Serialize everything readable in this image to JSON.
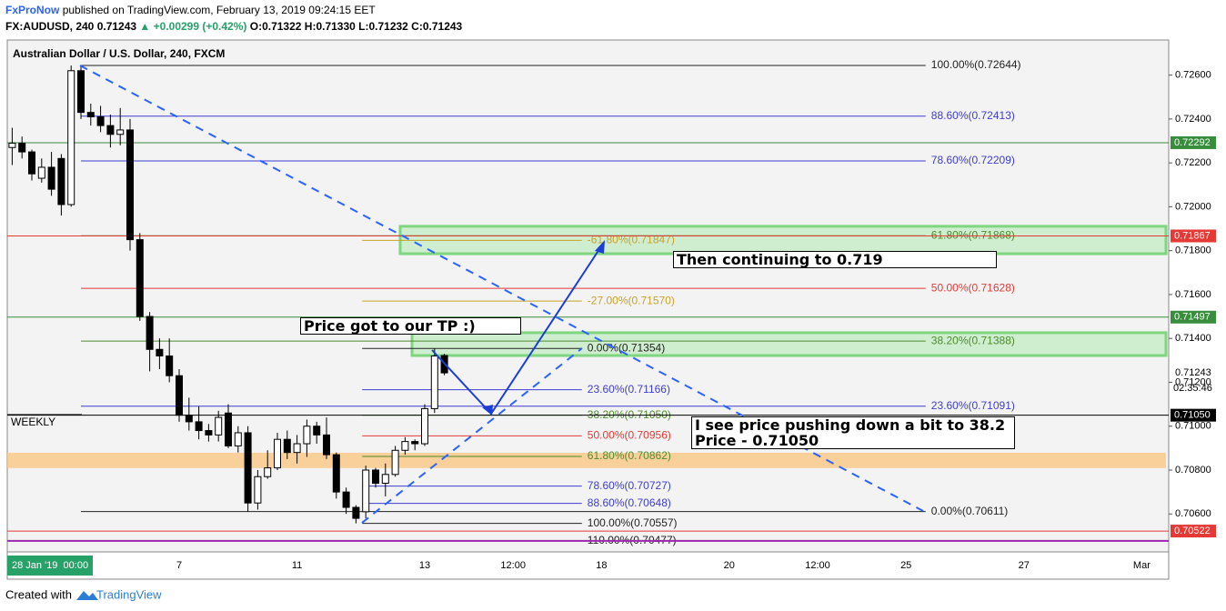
{
  "header": {
    "author": "FxProNow",
    "published": "published on TradingView.com, February 13, 2019 09:24:15 EET",
    "symbol": "FX:AUDUSD, 240 0.71243",
    "change": "▲ +0.00299 (+0.42%)",
    "ohlc": "O:0.71322 H:0.71330 L:0.71232 C:0.71243"
  },
  "footer": {
    "created": "Created with",
    "brand": "TradingView"
  },
  "annotations": {
    "tp": "Price got to our TP :)",
    "continue": "Then continuing to 0.719",
    "pullback": "I see price pushing down a bit to 38.2\nPrice - 0.71050",
    "weekly": "WEEKLY"
  },
  "chart_data": {
    "type": "candlestick",
    "title": "Australian Dollar / U.S. Dollar, 240, FXCM",
    "time_badge": "28 Jan '19  00:00",
    "categories": [
      null,
      null,
      null,
      null,
      null,
      null,
      null,
      null,
      null,
      null,
      null,
      null,
      null,
      null,
      null,
      null,
      null,
      "7",
      null,
      null,
      null,
      null,
      null,
      null,
      null,
      null,
      null,
      null,
      null,
      "11",
      null,
      null,
      null,
      null,
      null,
      null,
      null,
      null,
      null,
      null,
      null,
      null,
      "13",
      null,
      null,
      null,
      null,
      null,
      null,
      null,
      null,
      "12:00",
      null,
      null,
      null,
      null,
      null,
      null,
      null,
      null,
      "18",
      null,
      null,
      null,
      null,
      null,
      null,
      null,
      null,
      null,
      null,
      null,
      null,
      "20",
      null,
      null,
      null,
      null,
      null,
      null,
      null,
      null,
      "12:00",
      null,
      null,
      null,
      null,
      null,
      null,
      null,
      null,
      "25",
      null,
      null,
      null,
      null,
      null,
      null,
      null,
      null,
      null,
      null,
      null,
      "27",
      null,
      null,
      null,
      null,
      null,
      null,
      null,
      null,
      null,
      null,
      null,
      "Mar"
    ],
    "open": [
      0.7227,
      0.7229,
      0.7225,
      0.7213,
      0.7218,
      0.7222,
      0.7201,
      0.7262,
      0.7243,
      0.7241,
      0.7237,
      0.7233,
      0.7235,
      0.7185,
      0.715,
      0.7135,
      0.7132,
      0.7123,
      0.7105,
      0.7102,
      0.7098,
      0.7096,
      0.7106,
      0.7091,
      0.7097,
      0.7065,
      0.7077,
      0.7081,
      0.7094,
      0.7088,
      0.7092,
      0.71,
      0.7096,
      0.7087,
      0.707,
      0.7063,
      0.7061,
      0.708,
      0.7074,
      0.7078,
      0.7089,
      0.7093,
      0.7092,
      0.7108,
      0.71322,
      null,
      null,
      null,
      null,
      null,
      null,
      null,
      null,
      null,
      null,
      null,
      null,
      null,
      null,
      null,
      null,
      null,
      null,
      null,
      null,
      null,
      null,
      null,
      null,
      null,
      null,
      null,
      null,
      null,
      null,
      null,
      null,
      null,
      null,
      null,
      null,
      null,
      null,
      null,
      null,
      null,
      null,
      null,
      null,
      null,
      null,
      null,
      null,
      null,
      null,
      null,
      null,
      null,
      null,
      null,
      null,
      null,
      null,
      null,
      null,
      null,
      null,
      null,
      null,
      null,
      null,
      null,
      null,
      null,
      null,
      null
    ],
    "high": [
      0.7236,
      0.7232,
      0.7226,
      0.7222,
      0.7225,
      0.7224,
      0.72644,
      0.7264,
      0.7247,
      0.7246,
      0.7242,
      0.7245,
      0.724,
      0.7188,
      0.7152,
      0.714,
      0.714,
      0.7126,
      0.7113,
      0.7109,
      0.7101,
      0.7107,
      0.711,
      0.71,
      0.71,
      0.708,
      0.7089,
      0.7097,
      0.7098,
      0.7096,
      0.7103,
      0.7102,
      0.7104,
      0.7088,
      0.7072,
      0.7064,
      0.7082,
      0.7081,
      0.7083,
      0.7091,
      0.7095,
      0.7094,
      0.711,
      0.71354,
      0.7133,
      null,
      null,
      null,
      null,
      null,
      null,
      null,
      null,
      null,
      null,
      null,
      null,
      null,
      null,
      null,
      null,
      null,
      null,
      null,
      null,
      null,
      null,
      null,
      null,
      null,
      null,
      null,
      null,
      null,
      null,
      null,
      null,
      null,
      null,
      null,
      null,
      null,
      null,
      null,
      null,
      null,
      null,
      null,
      null,
      null,
      null,
      null,
      null,
      null,
      null,
      null,
      null,
      null,
      null,
      null,
      null,
      null,
      null,
      null,
      null,
      null,
      null,
      null,
      null,
      null,
      null,
      null,
      null,
      null,
      null,
      null
    ],
    "low": [
      0.7219,
      0.7222,
      0.7212,
      0.7211,
      0.7205,
      0.7196,
      0.72,
      0.724,
      0.7237,
      0.7234,
      0.7227,
      0.7228,
      0.718,
      0.7148,
      0.7125,
      0.7126,
      0.712,
      0.7102,
      0.7098,
      0.7094,
      0.7093,
      0.7093,
      0.709,
      0.7088,
      0.7061,
      0.7062,
      0.7076,
      0.708,
      0.7085,
      0.7083,
      0.7086,
      0.7092,
      0.7085,
      0.7067,
      0.706,
      0.70557,
      0.7058,
      0.7072,
      0.7068,
      0.7077,
      0.7087,
      0.7089,
      0.7091,
      0.7106,
      0.71232,
      null,
      null,
      null,
      null,
      null,
      null,
      null,
      null,
      null,
      null,
      null,
      null,
      null,
      null,
      null,
      null,
      null,
      null,
      null,
      null,
      null,
      null,
      null,
      null,
      null,
      null,
      null,
      null,
      null,
      null,
      null,
      null,
      null,
      null,
      null,
      null,
      null,
      null,
      null,
      null,
      null,
      null,
      null,
      null,
      null,
      null,
      null,
      null,
      null,
      null,
      null,
      null,
      null,
      null,
      null,
      null,
      null,
      null,
      null,
      null,
      null,
      null,
      null,
      null,
      null,
      null,
      null,
      null,
      null,
      null,
      null
    ],
    "close": [
      0.7229,
      0.7225,
      0.7215,
      0.7218,
      0.7208,
      0.7201,
      0.7262,
      0.7243,
      0.7241,
      0.7237,
      0.7233,
      0.7235,
      0.7185,
      0.715,
      0.7135,
      0.7132,
      0.7123,
      0.7105,
      0.7102,
      0.7098,
      0.7096,
      0.7104,
      0.7091,
      0.7097,
      0.7065,
      0.7077,
      0.7081,
      0.7094,
      0.7088,
      0.7092,
      0.71,
      0.7096,
      0.7087,
      0.707,
      0.7063,
      0.7058,
      0.708,
      0.7074,
      0.7078,
      0.7089,
      0.7093,
      0.7092,
      0.7108,
      0.7132,
      0.71243,
      null,
      null,
      null,
      null,
      null,
      null,
      null,
      null,
      null,
      null,
      null,
      null,
      null,
      null,
      null,
      null,
      null,
      null,
      null,
      null,
      null,
      null,
      null,
      null,
      null,
      null,
      null,
      null,
      null,
      null,
      null,
      null,
      null,
      null,
      null,
      null,
      null,
      null,
      null,
      null,
      null,
      null,
      null,
      null,
      null,
      null,
      null,
      null,
      null,
      null,
      null,
      null,
      null,
      null,
      null,
      null,
      null,
      null,
      null,
      null,
      null,
      null,
      null,
      null,
      null,
      null,
      null,
      null,
      null,
      null,
      null
    ],
    "up_color": "#ffffff",
    "down_color": "#000000",
    "ylim": [
      0.70427,
      0.7276
    ],
    "yticks": [
      {
        "value": 0.706,
        "label": "0.70600"
      },
      {
        "value": 0.708,
        "label": "0.70800"
      },
      {
        "value": 0.71,
        "label": "0.71000"
      },
      {
        "value": 0.712,
        "label": "0.71200"
      },
      {
        "value": 0.714,
        "label": "0.71400"
      },
      {
        "value": 0.716,
        "label": "0.71600"
      },
      {
        "value": 0.718,
        "label": "0.71800"
      },
      {
        "value": 0.72,
        "label": "0.72000"
      },
      {
        "value": 0.722,
        "label": "0.72200"
      },
      {
        "value": 0.724,
        "label": "0.72400"
      },
      {
        "value": 0.726,
        "label": "0.72600"
      }
    ],
    "last_price": {
      "value": 0.71243,
      "label": "0.71243"
    },
    "countdown": "02:35:46",
    "price_lines": [
      {
        "value": 0.72292,
        "label": "0.72292",
        "color": "#388e3c"
      },
      {
        "value": 0.71867,
        "label": "0.71867",
        "color": "#e53935"
      },
      {
        "value": 0.71497,
        "label": "0.71497",
        "color": "#388e3c"
      },
      {
        "value": 0.7105,
        "label": "0.71050",
        "color": "#000000"
      },
      {
        "value": 0.70522,
        "label": "0.70522",
        "color": "#e53935"
      },
      {
        "value": 0.70477,
        "color": "#9c27b0"
      }
    ],
    "zones": [
      {
        "from": 0.71786,
        "to": 0.71911,
        "color": "#8be28b"
      },
      {
        "from": 0.71322,
        "to": 0.71426,
        "color": "#8be28b"
      },
      {
        "from": 0.70809,
        "to": 0.70879,
        "color": "#f9c98a"
      }
    ],
    "fib_sets": [
      {
        "levels": [
          {
            "value": 0.72644,
            "label": "100.00%(0.72644)",
            "color": "#222222"
          },
          {
            "value": 0.72413,
            "label": "88.60%(0.72413)",
            "color": "#3c3cd2"
          },
          {
            "value": 0.72209,
            "label": "78.60%(0.72209)",
            "color": "#3c3cd2"
          },
          {
            "value": 0.71868,
            "label": "61.80%(0.71868)",
            "color": "#4c8c2c"
          },
          {
            "value": 0.71628,
            "label": "50.00%(0.71628)",
            "color": "#e53935"
          },
          {
            "value": 0.71388,
            "label": "38.20%(0.71388)",
            "color": "#4c8c2c"
          },
          {
            "value": 0.71091,
            "label": "23.60%(0.71091)",
            "color": "#3c3cd2"
          },
          {
            "value": 0.70611,
            "label": "0.00%(0.70611)",
            "color": "#222222"
          }
        ]
      },
      {
        "levels": [
          {
            "value": 0.71847,
            "label": "-61.80%(0.71847)",
            "color": "#c9a227"
          },
          {
            "value": 0.7157,
            "label": "-27.00%(0.71570)",
            "color": "#c9a227"
          },
          {
            "value": 0.71354,
            "label": "0.00%(0.71354)",
            "color": "#222222"
          },
          {
            "value": 0.71166,
            "label": "23.60%(0.71166)",
            "color": "#3c3cd2"
          },
          {
            "value": 0.7105,
            "label": "38.20%(0.71050)",
            "color": "#4c8c2c"
          },
          {
            "value": 0.70956,
            "label": "50.00%(0.70956)",
            "color": "#e53935"
          },
          {
            "value": 0.70862,
            "label": "61.80%(0.70862)",
            "color": "#4c8c2c"
          },
          {
            "value": 0.70727,
            "label": "78.60%(0.70727)",
            "color": "#3c3cd2"
          },
          {
            "value": 0.70648,
            "label": "88.60%(0.70648)",
            "color": "#3c3cd2"
          },
          {
            "value": 0.70557,
            "label": "100.00%(0.70557)",
            "color": "#222222"
          },
          {
            "value": 0.70477,
            "label": "110.00%(0.70477)",
            "color": "#222222"
          }
        ]
      }
    ]
  }
}
